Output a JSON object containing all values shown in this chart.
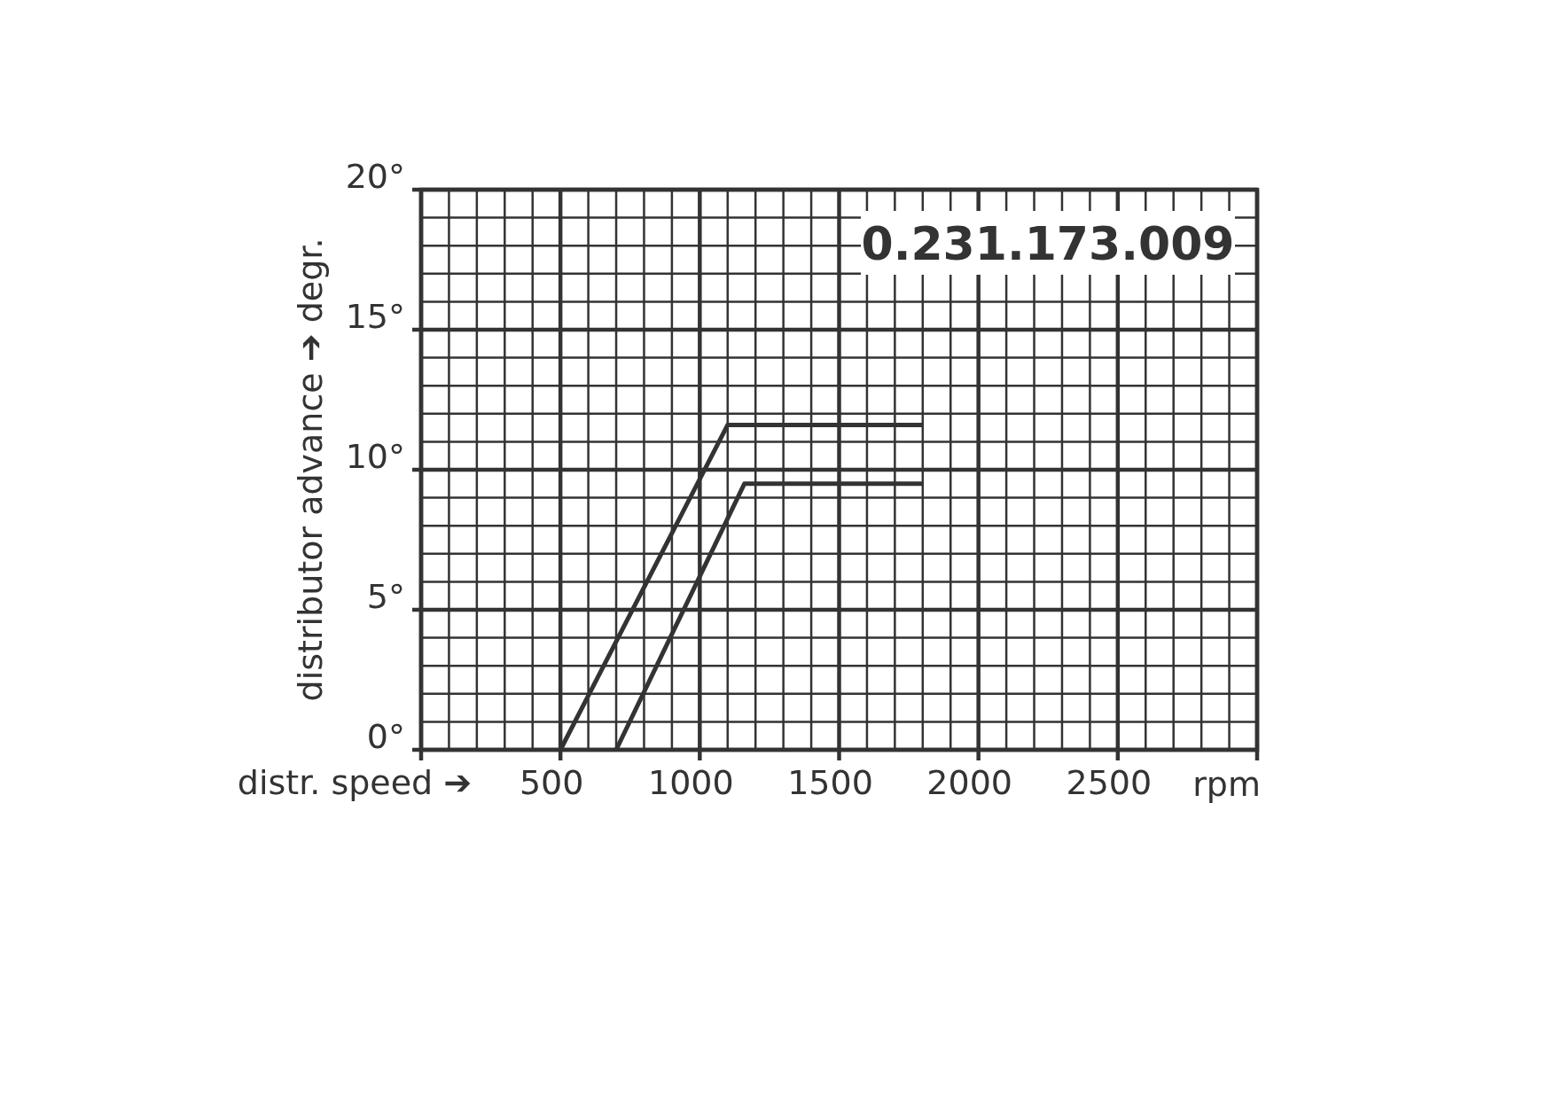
{
  "chart_data": {
    "type": "line",
    "title": "0.231.173.009",
    "xlabel": "distr. speed ➔",
    "ylabel": "distributor advance  ➔  degr.",
    "annotations": [
      "rpm"
    ],
    "xlim": [
      0,
      3000
    ],
    "ylim": [
      0,
      20
    ],
    "xticks": [
      {
        "value": 0,
        "label": null
      },
      500,
      1000,
      1500,
      2000,
      2500,
      {
        "value": 3000,
        "label": null
      }
    ],
    "yticks": [
      {
        "value": 0,
        "label": "0°"
      },
      {
        "value": 5,
        "label": "5°"
      },
      {
        "value": 10,
        "label": "10°"
      },
      {
        "value": 15,
        "label": "15°"
      },
      {
        "value": 20,
        "label": "20°"
      }
    ],
    "grid": true,
    "marker": "none",
    "line_style": "solid",
    "series": [
      {
        "color": "#333333",
        "x": [
          500,
          1100,
          1800
        ],
        "values": [
          0,
          11.6,
          11.6
        ]
      },
      {
        "color": "#333333",
        "x": [
          700,
          1160,
          1800
        ],
        "values": [
          0,
          9.5,
          9.5
        ]
      }
    ]
  }
}
